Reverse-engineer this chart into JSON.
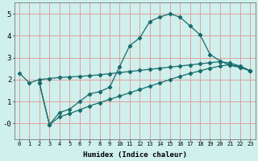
{
  "xlabel": "Humidex (Indice chaleur)",
  "bg_color": "#cff0ec",
  "grid_color": "#e0a0a0",
  "line_color": "#1a6b6b",
  "xlim": [
    -0.5,
    23.5
  ],
  "ylim": [
    -0.7,
    5.5
  ],
  "yticks": [
    0,
    1,
    2,
    3,
    4,
    5
  ],
  "ytick_labels": [
    "-0",
    "1",
    "2",
    "3",
    "4",
    "5"
  ],
  "xticks": [
    0,
    1,
    2,
    3,
    4,
    5,
    6,
    7,
    8,
    9,
    10,
    11,
    12,
    13,
    14,
    15,
    16,
    17,
    18,
    19,
    20,
    21,
    22,
    23
  ],
  "line1_x": [
    0,
    1,
    2,
    3,
    4,
    5,
    6,
    7,
    8,
    9,
    10,
    11,
    12,
    13,
    14,
    15,
    16,
    17,
    18,
    19,
    20,
    21,
    22,
    23
  ],
  "line1_y": [
    2.3,
    1.85,
    2.0,
    2.05,
    2.1,
    2.12,
    2.15,
    2.18,
    2.22,
    2.27,
    2.32,
    2.37,
    2.42,
    2.47,
    2.52,
    2.57,
    2.62,
    2.67,
    2.72,
    2.77,
    2.82,
    2.75,
    2.62,
    2.4
  ],
  "line2_x": [
    2,
    3,
    4,
    5,
    6,
    7,
    8,
    9,
    10,
    11,
    12,
    13,
    14,
    15,
    16,
    17,
    18,
    19,
    20,
    21,
    22,
    23
  ],
  "line2_y": [
    1.85,
    -0.05,
    0.5,
    0.65,
    1.0,
    1.35,
    1.45,
    1.65,
    2.6,
    3.55,
    3.9,
    4.65,
    4.85,
    5.0,
    4.85,
    4.45,
    4.05,
    3.15,
    2.85,
    2.65,
    2.55,
    2.4
  ],
  "line3_x": [
    2,
    3,
    4,
    5,
    6,
    7,
    8,
    9,
    10,
    11,
    12,
    13,
    14,
    15,
    16,
    17,
    18,
    19,
    20,
    21,
    22,
    23
  ],
  "line3_y": [
    1.85,
    -0.05,
    0.3,
    0.45,
    0.62,
    0.8,
    0.95,
    1.1,
    1.25,
    1.4,
    1.55,
    1.7,
    1.85,
    2.0,
    2.15,
    2.28,
    2.4,
    2.52,
    2.62,
    2.68,
    2.6,
    2.4
  ]
}
